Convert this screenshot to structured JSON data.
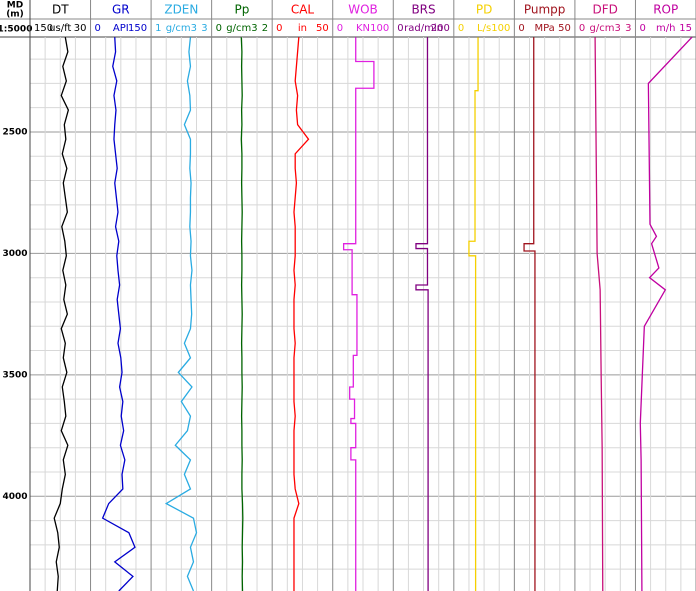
{
  "chart_data": {
    "type": "well-log",
    "depth_title": [
      "MD",
      "(m)"
    ],
    "depth_scale": "1:5000",
    "ylim": [
      2109,
      4390
    ],
    "yticks": [
      2500,
      3000,
      3500,
      4000
    ],
    "yminor": [
      2200,
      2300,
      2400,
      2600,
      2700,
      2800,
      2900,
      3100,
      3200,
      3300,
      3400,
      3600,
      3700,
      3800,
      3900,
      4100,
      4200,
      4300
    ],
    "grid": true,
    "depth": [
      2110,
      2170,
      2230,
      2290,
      2350,
      2410,
      2470,
      2530,
      2590,
      2650,
      2710,
      2770,
      2830,
      2890,
      2950,
      3010,
      3070,
      3130,
      3190,
      3250,
      3310,
      3370,
      3430,
      3490,
      3550,
      3610,
      3670,
      3730,
      3790,
      3850,
      3910,
      3970,
      4030,
      4090,
      4150,
      4210,
      4270,
      4330,
      4390
    ],
    "tracks": [
      {
        "name": "DT",
        "unit": "us/ft",
        "xlim": [
          150,
          30
        ],
        "color": "#000000",
        "values": [
          80,
          75,
          85,
          78,
          88,
          74,
          82,
          79,
          86,
          77,
          84,
          80,
          76,
          87,
          81,
          78,
          85,
          79,
          83,
          76,
          88,
          80,
          84,
          77,
          86,
          82,
          79,
          88,
          75,
          84,
          80,
          86,
          90,
          102,
          95,
          92,
          98,
          94,
          96
        ]
      },
      {
        "name": "GR",
        "unit": "API",
        "xlim": [
          0,
          150
        ],
        "color": "#0000cc",
        "values": [
          60,
          62,
          55,
          65,
          58,
          63,
          60,
          58,
          62,
          66,
          60,
          64,
          68,
          62,
          70,
          65,
          68,
          72,
          66,
          70,
          74,
          68,
          75,
          78,
          72,
          80,
          76,
          82,
          74,
          85,
          78,
          80,
          45,
          30,
          95,
          110,
          60,
          105,
          70
        ]
      },
      {
        "name": "ZDEN",
        "unit": "g/cm3",
        "xlim": [
          1,
          3
        ],
        "color": "#29abe2",
        "values": [
          2.3,
          2.25,
          2.3,
          2.2,
          2.28,
          2.3,
          2.1,
          2.3,
          2.3,
          2.28,
          2.32,
          2.3,
          2.3,
          2.28,
          2.32,
          2.3,
          2.35,
          2.3,
          2.32,
          2.34,
          2.3,
          2.1,
          2.3,
          1.9,
          2.35,
          2.0,
          2.3,
          2.2,
          1.8,
          2.3,
          2.1,
          2.3,
          1.5,
          2.4,
          2.5,
          2.3,
          2.4,
          2.2,
          2.4
        ]
      },
      {
        "name": "Pp",
        "unit": "g/cm3",
        "xlim": [
          0,
          2
        ],
        "color": "#006400",
        "values": [
          0.98,
          1.0,
          0.99,
          1.0,
          1.01,
          0.99,
          1.0,
          0.98,
          1.0,
          1.0,
          0.99,
          1.0,
          1.01,
          1.0,
          0.99,
          1.0,
          1.0,
          0.99,
          1.0,
          1.01,
          1.0,
          0.99,
          1.0,
          1.0,
          1.01,
          1.0,
          0.99,
          1.0,
          1.0,
          1.01,
          1.0,
          1.0,
          1.02,
          1.03,
          1.02,
          1.01,
          1.02,
          1.01,
          1.02
        ]
      },
      {
        "name": "CAL",
        "unit": "in",
        "xlim": [
          0,
          50
        ],
        "color": "#ff0000",
        "values": [
          22,
          21,
          20,
          19,
          21,
          20,
          21,
          30,
          19,
          19,
          20,
          19,
          18,
          19,
          19,
          19,
          18,
          19,
          18,
          18,
          18,
          19,
          18,
          18,
          18,
          18,
          19,
          18,
          18,
          18,
          18,
          19,
          22,
          18,
          18,
          18,
          18,
          18,
          18
        ]
      },
      {
        "name": "WOB",
        "unit": "KN",
        "xlim": [
          0,
          100
        ],
        "color": "#e020e0",
        "depth": [
          2110,
          2210,
          2210,
          2320,
          2320,
          2960,
          2960,
          2985,
          2985,
          3170,
          3170,
          3420,
          3420,
          3550,
          3550,
          3600,
          3600,
          3680,
          3680,
          3700,
          3700,
          3800,
          3800,
          3850,
          3850,
          4390
        ],
        "values": [
          38,
          38,
          68,
          68,
          38,
          38,
          18,
          18,
          32,
          32,
          40,
          40,
          34,
          34,
          28,
          28,
          36,
          36,
          30,
          30,
          38,
          38,
          30,
          30,
          38,
          38
        ]
      },
      {
        "name": "BRS",
        "unit": "rad/min",
        "xlim": [
          0,
          200
        ],
        "color": "#800080",
        "depth": [
          2110,
          2960,
          2960,
          2980,
          2980,
          3130,
          3130,
          3150,
          3150,
          4390
        ],
        "values": [
          113,
          113,
          75,
          75,
          113,
          113,
          75,
          75,
          115,
          115
        ]
      },
      {
        "name": "PD",
        "unit": "L/s",
        "xlim": [
          0,
          100
        ],
        "color": "#f5d000",
        "depth": [
          2110,
          2330,
          2330,
          2950,
          2950,
          3010,
          3010,
          4390
        ],
        "values": [
          40,
          40,
          35,
          35,
          25,
          25,
          36,
          36
        ]
      },
      {
        "name": "Pumpp",
        "unit": "MPa",
        "xlim": [
          0,
          50
        ],
        "color": "#a0141e",
        "depth": [
          2110,
          2960,
          2960,
          2990,
          2990,
          4390
        ],
        "values": [
          16,
          16,
          8,
          8,
          17,
          17
        ]
      },
      {
        "name": "DFD",
        "unit": "g/cm3",
        "xlim": [
          0,
          3
        ],
        "color": "#c8107a",
        "depth": [
          2110,
          3000,
          3150,
          3500,
          3800,
          4390
        ],
        "values": [
          1.0,
          1.1,
          1.25,
          1.3,
          1.35,
          1.38
        ]
      },
      {
        "name": "ROP",
        "unit": "m/h",
        "xlim": [
          0,
          15
        ],
        "color": "#c000a0",
        "depth": [
          2110,
          2300,
          2880,
          2930,
          2960,
          3060,
          3100,
          3150,
          3300,
          3700,
          3850,
          4390
        ],
        "values": [
          14,
          3.2,
          3.6,
          5.2,
          4.0,
          5.8,
          3.5,
          7.4,
          2.2,
          1.2,
          1.4,
          1.6
        ]
      }
    ]
  }
}
